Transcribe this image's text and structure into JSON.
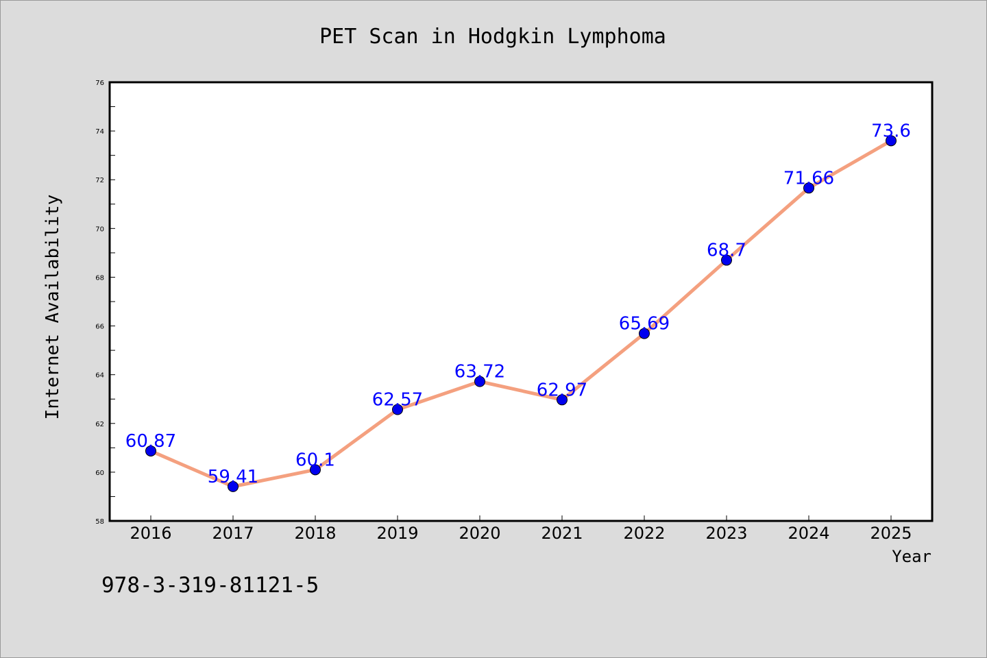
{
  "chart_data": {
    "type": "line",
    "title": "PET Scan in Hodgkin Lymphoma",
    "xlabel": "Year",
    "ylabel": "Internet Availability",
    "categories": [
      "2016",
      "2017",
      "2018",
      "2019",
      "2020",
      "2021",
      "2022",
      "2023",
      "2024",
      "2025"
    ],
    "series": [
      {
        "values": [
          60.87,
          59.41,
          60.1,
          62.57,
          63.72,
          62.97,
          65.69,
          68.7,
          71.66,
          73.6
        ]
      }
    ],
    "ylim": [
      58,
      76
    ],
    "yticks": [
      58,
      60,
      62,
      64,
      66,
      68,
      70,
      72,
      74,
      76
    ],
    "line_color": "#f4a07f",
    "marker_color": "#0000ee",
    "label_color": "#0000ff",
    "grid": false,
    "legend": "none"
  },
  "annotation": "978-3-319-81121-5"
}
